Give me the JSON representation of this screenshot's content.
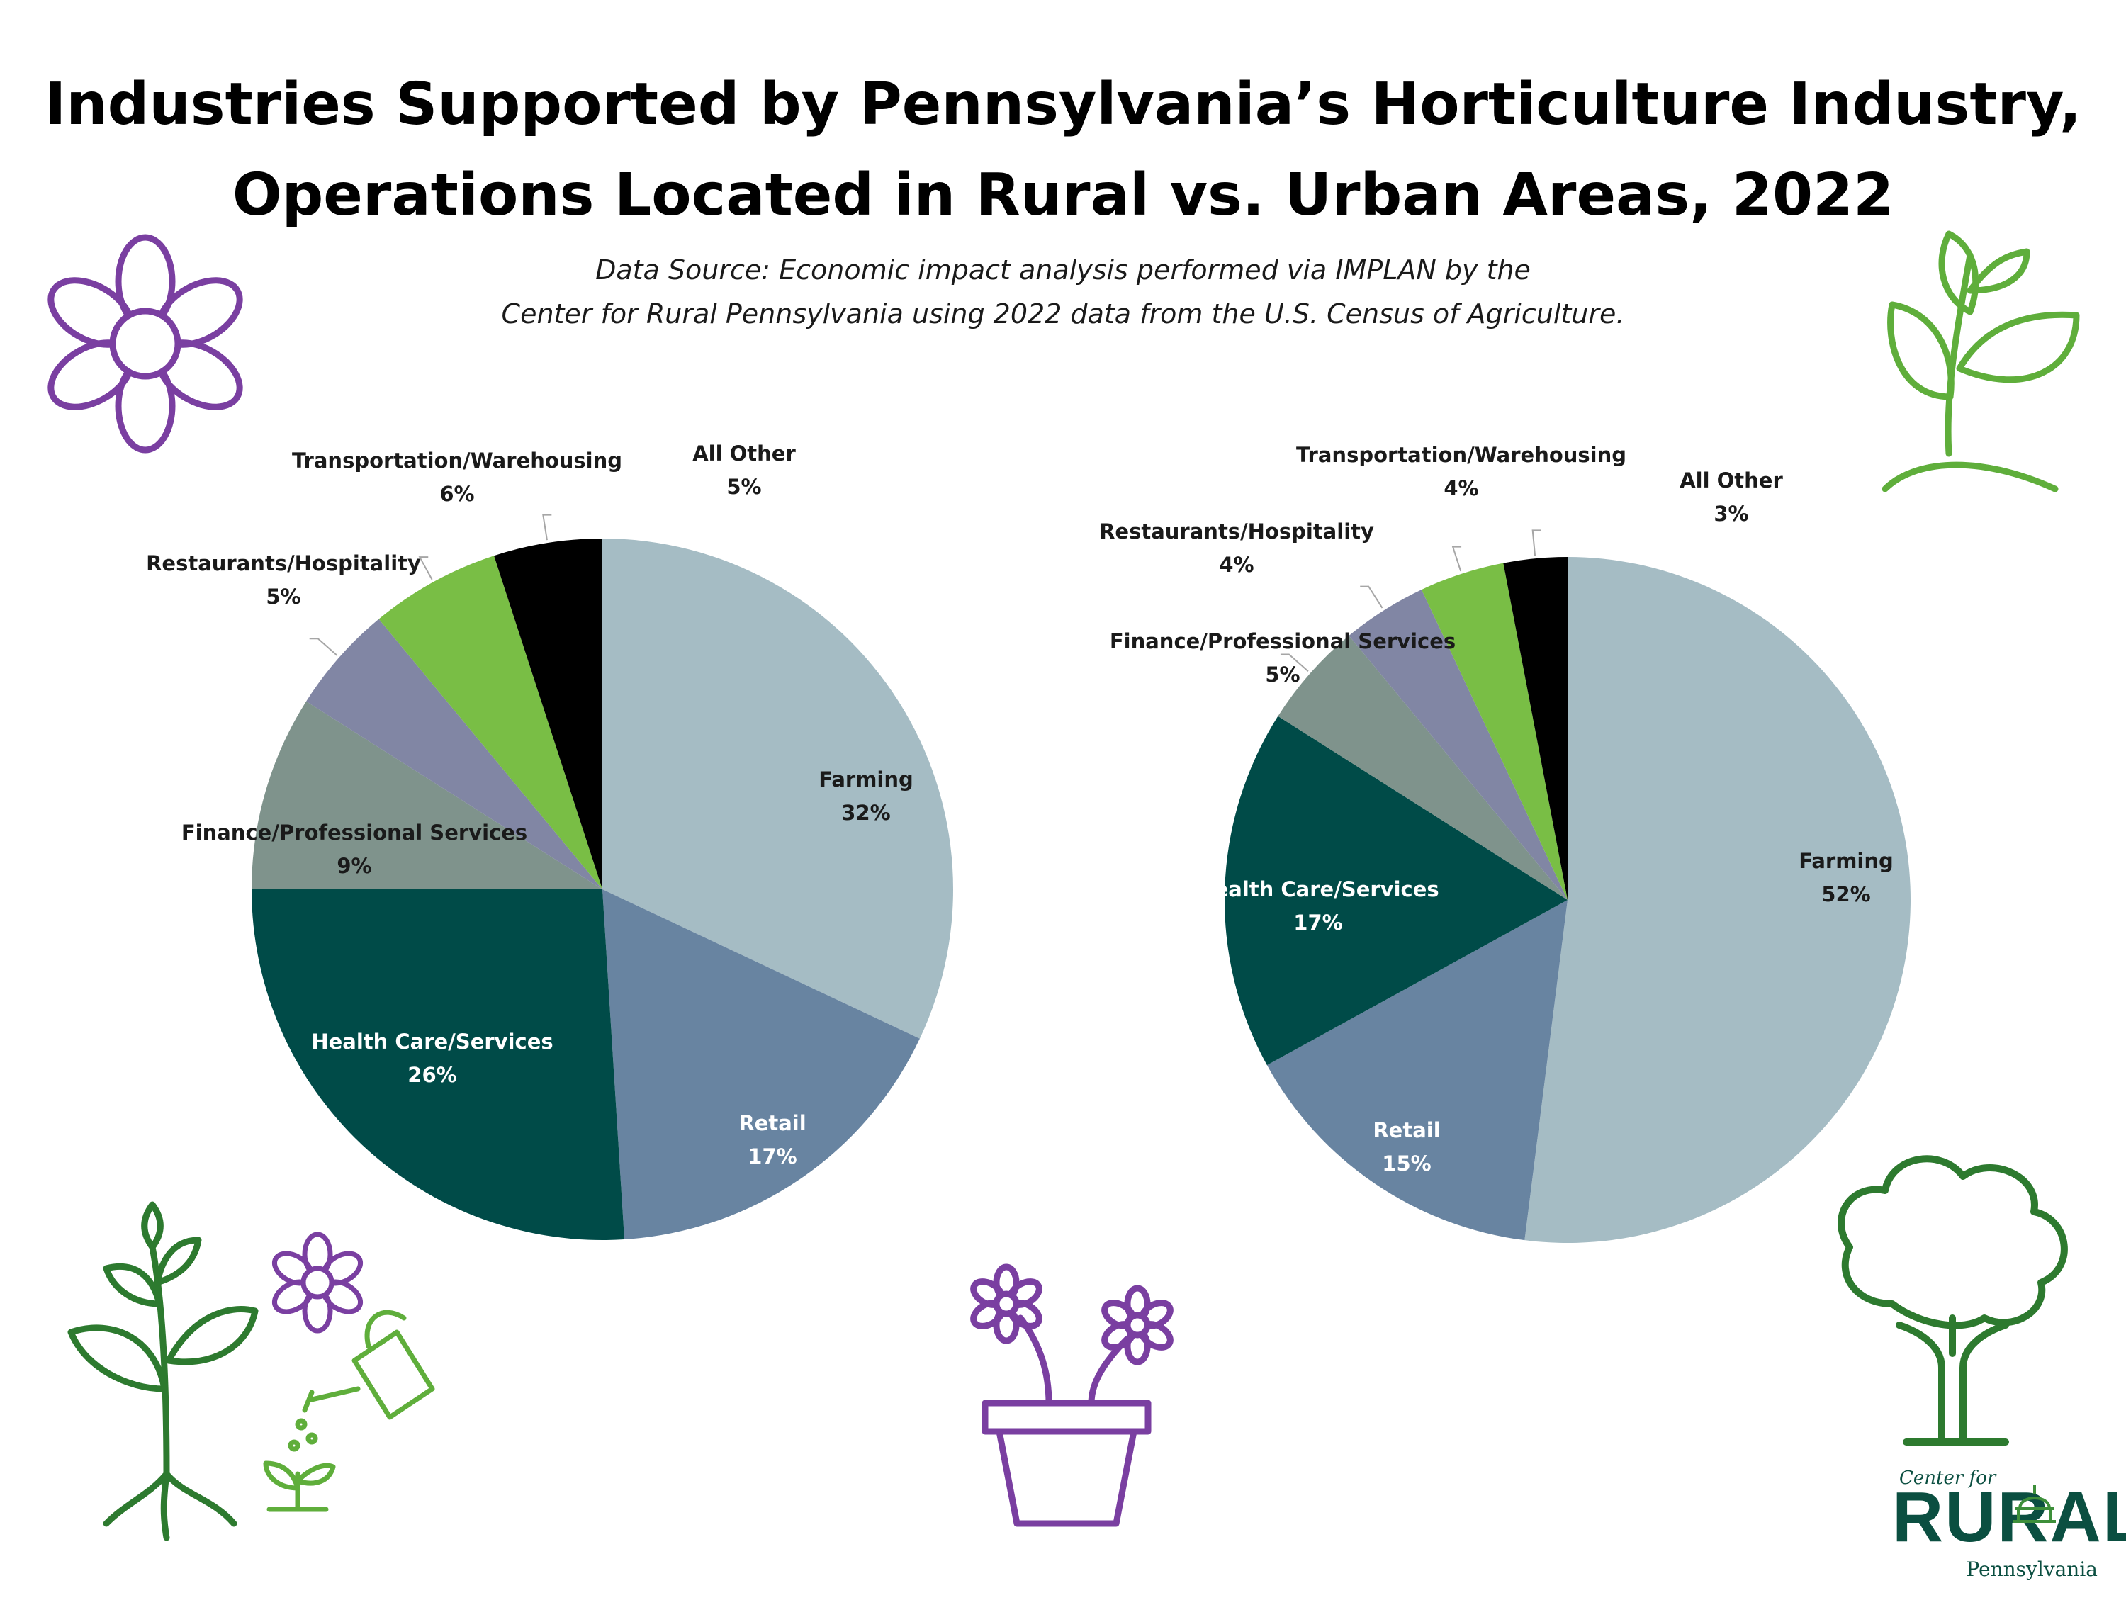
{
  "title": {
    "line1": "Industries Supported by Pennsylvania’s Horticulture Industry,",
    "line2": "Operations Located in Rural vs. Urban Areas, 2022"
  },
  "source": {
    "line1": "Data Source: Economic impact analysis performed via IMPLAN by the",
    "line2": "Center for Rural Pennsylvania using 2022 data from the U.S. Census of Agriculture."
  },
  "colors": {
    "farming": "#a5bcc4",
    "retail": "#6884a1",
    "health": "#004b48",
    "finance": "#7f938c",
    "restaurants": "#8186a4",
    "transportation": "#79be45",
    "other": "#000000",
    "purple": "#7a3fa1",
    "green": "#2d7a2f",
    "lightgreen": "#5fae3b"
  },
  "chart_data": [
    {
      "type": "pie",
      "title": "",
      "categories": [
        "Farming",
        "Retail",
        "Health Care/Services",
        "Finance/Professional Services",
        "Restaurants/Hospitality",
        "Transportation/Warehousing",
        "All Other"
      ],
      "values": [
        32,
        17,
        26,
        9,
        5,
        6,
        5
      ],
      "labels": [
        "32%",
        "17%",
        "26%",
        "9%",
        "5%",
        "6%",
        "5%"
      ]
    },
    {
      "type": "pie",
      "title": "",
      "categories": [
        "Farming",
        "Retail",
        "Health Care/Services",
        "Finance/Professional Services",
        "Restaurants/Hospitality",
        "Transportation/Warehousing",
        "All Other"
      ],
      "values": [
        52,
        15,
        17,
        5,
        4,
        4,
        3
      ],
      "labels": [
        "52%",
        "15%",
        "17%",
        "5%",
        "4%",
        "4%",
        "3%"
      ]
    }
  ],
  "logo": {
    "line1": "Center for",
    "line2": "RURAL",
    "line3": "Pennsylvania"
  }
}
